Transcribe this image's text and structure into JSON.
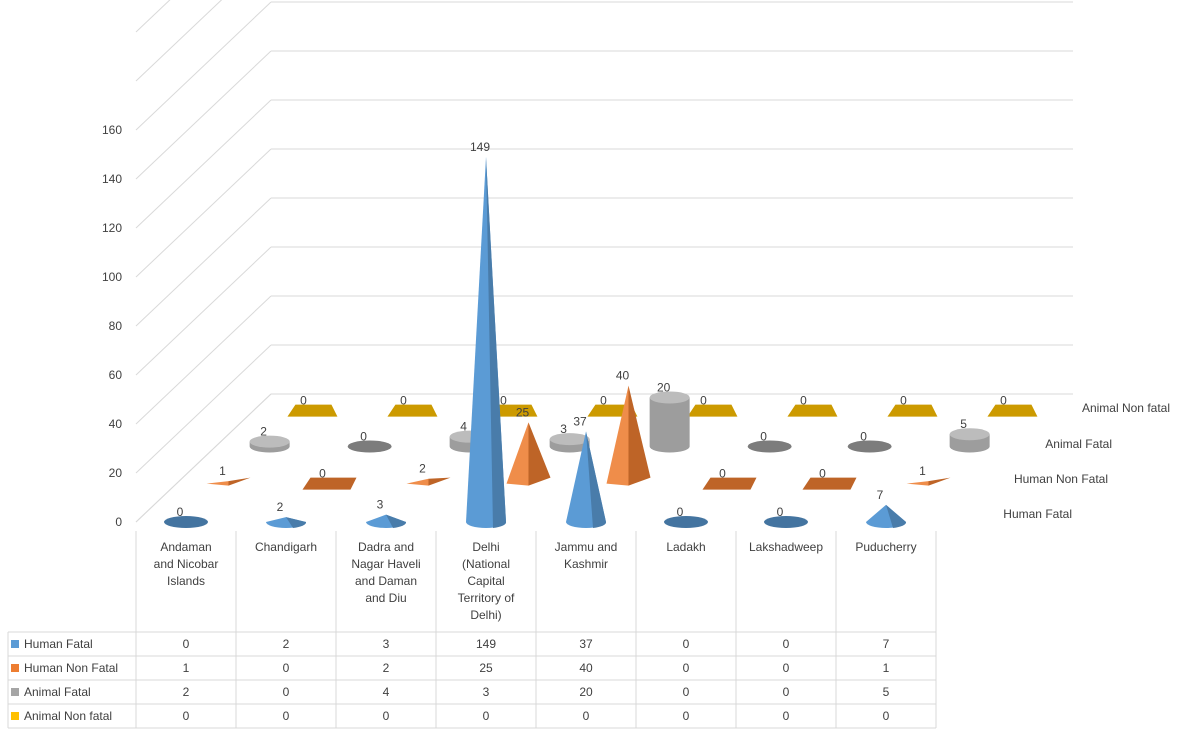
{
  "chart_data": {
    "type": "bar",
    "variant": "3d-cone-with-data-table",
    "categories": [
      [
        "Andaman",
        "and Nicobar",
        "Islands"
      ],
      [
        "Chandigarh"
      ],
      [
        "Dadra and",
        "Nagar Haveli",
        "and Daman",
        "and Diu"
      ],
      [
        "Delhi",
        "(National",
        "Capital",
        "Territory of",
        "Delhi)"
      ],
      [
        "Jammu and",
        "Kashmir"
      ],
      [
        "Ladakh"
      ],
      [
        "Lakshadweep"
      ],
      [
        "Puducherry"
      ]
    ],
    "series": [
      {
        "name": "Human Fatal",
        "color": "#5B9BD5",
        "values": [
          0,
          2,
          3,
          149,
          37,
          0,
          0,
          7
        ]
      },
      {
        "name": "Human Non Fatal",
        "color": "#ED7D31",
        "values": [
          1,
          0,
          2,
          25,
          40,
          0,
          0,
          1
        ]
      },
      {
        "name": "Animal Fatal",
        "color": "#A5A5A5",
        "values": [
          2,
          0,
          4,
          3,
          20,
          0,
          0,
          5
        ]
      },
      {
        "name": "Animal Non fatal",
        "color": "#FFC000",
        "values": [
          0,
          0,
          0,
          0,
          0,
          0,
          0,
          0
        ]
      }
    ],
    "y_ticks": [
      0,
      20,
      40,
      60,
      80,
      100,
      120,
      140,
      160
    ],
    "ylim": [
      0,
      160
    ],
    "grid": true,
    "legend": "data-table-left"
  }
}
